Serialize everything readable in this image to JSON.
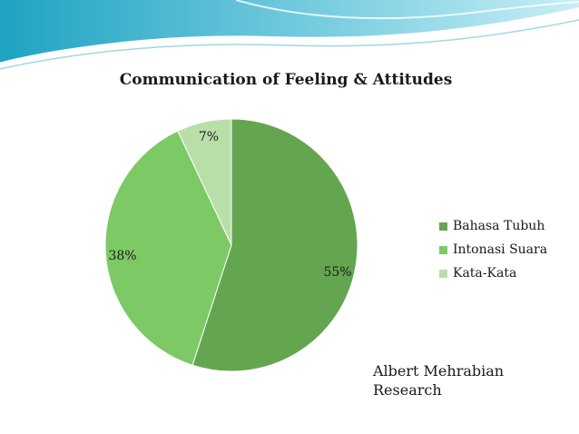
{
  "chart_data": {
    "type": "pie",
    "title": "Communication of Feeling & Attitudes",
    "slices": [
      {
        "name": "Bahasa Tubuh",
        "value": 55,
        "label": "55%",
        "color": "#64a650"
      },
      {
        "name": "Intonasi Suara",
        "value": 38,
        "label": "38%",
        "color": "#7dc965"
      },
      {
        "name": "Kata-Kata",
        "value": 7,
        "label": "7%",
        "color": "#b9dfa9"
      }
    ],
    "legend_position": "right"
  },
  "credit": {
    "line1": "Albert Mehrabian",
    "line2": "Research"
  },
  "theme": {
    "wave_dark": "#2aa8c4",
    "wave_light": "#a9e1ec"
  }
}
